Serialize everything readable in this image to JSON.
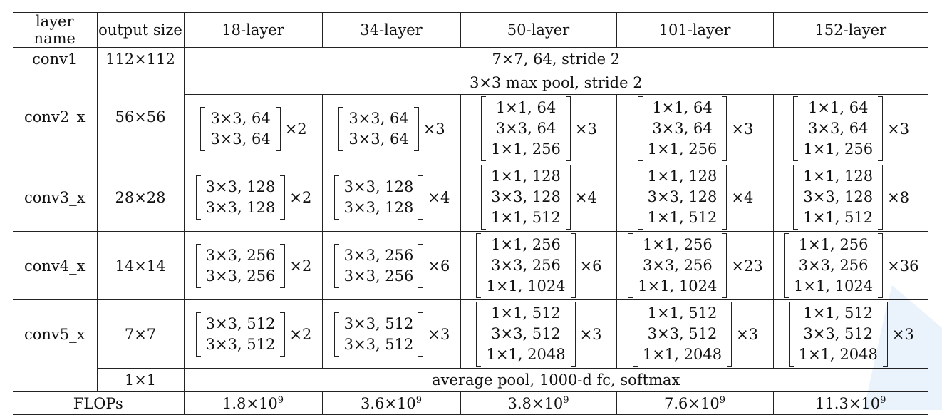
{
  "headers": [
    "layer name",
    "output size",
    "18-layer",
    "34-layer",
    "50-layer",
    "101-layer",
    "152-layer"
  ],
  "conv1": {
    "name": "conv1",
    "output": "112×112",
    "spec": "7×7, 64, stride 2"
  },
  "conv2": {
    "name": "conv2_x",
    "output": "56×56",
    "pool": "3×3 max pool, stride 2",
    "cells": [
      {
        "lines": [
          "3×3, 64",
          "3×3, 64"
        ],
        "rep": "×2"
      },
      {
        "lines": [
          "3×3, 64",
          "3×3, 64"
        ],
        "rep": "×3"
      },
      {
        "lines": [
          "1×1, 64",
          "3×3, 64",
          "1×1, 256"
        ],
        "rep": "×3"
      },
      {
        "lines": [
          "1×1, 64",
          "3×3, 64",
          "1×1, 256"
        ],
        "rep": "×3"
      },
      {
        "lines": [
          "1×1, 64",
          "3×3, 64",
          "1×1, 256"
        ],
        "rep": "×3"
      }
    ]
  },
  "conv3": {
    "name": "conv3_x",
    "output": "28×28",
    "cells": [
      {
        "lines": [
          "3×3, 128",
          "3×3, 128"
        ],
        "rep": "×2"
      },
      {
        "lines": [
          "3×3, 128",
          "3×3, 128"
        ],
        "rep": "×4"
      },
      {
        "lines": [
          "1×1, 128",
          "3×3, 128",
          "1×1, 512"
        ],
        "rep": "×4"
      },
      {
        "lines": [
          "1×1, 128",
          "3×3, 128",
          "1×1, 512"
        ],
        "rep": "×4"
      },
      {
        "lines": [
          "1×1, 128",
          "3×3, 128",
          "1×1, 512"
        ],
        "rep": "×8"
      }
    ]
  },
  "conv4": {
    "name": "conv4_x",
    "output": "14×14",
    "cells": [
      {
        "lines": [
          "3×3, 256",
          "3×3, 256"
        ],
        "rep": "×2"
      },
      {
        "lines": [
          "3×3, 256",
          "3×3, 256"
        ],
        "rep": "×6"
      },
      {
        "lines": [
          "1×1, 256",
          "3×3, 256",
          "1×1, 1024"
        ],
        "rep": "×6"
      },
      {
        "lines": [
          "1×1, 256",
          "3×3, 256",
          "1×1, 1024"
        ],
        "rep": "×23"
      },
      {
        "lines": [
          "1×1, 256",
          "3×3, 256",
          "1×1, 1024"
        ],
        "rep": "×36"
      }
    ]
  },
  "conv5": {
    "name": "conv5_x",
    "output": "7×7",
    "cells": [
      {
        "lines": [
          "3×3, 512",
          "3×3, 512"
        ],
        "rep": "×2"
      },
      {
        "lines": [
          "3×3, 512",
          "3×3, 512"
        ],
        "rep": "×3"
      },
      {
        "lines": [
          "1×1, 512",
          "3×3, 512",
          "1×1, 2048"
        ],
        "rep": "×3"
      },
      {
        "lines": [
          "1×1, 512",
          "3×3, 512",
          "1×1, 2048"
        ],
        "rep": "×3"
      },
      {
        "lines": [
          "1×1, 512",
          "3×3, 512",
          "1×1, 2048"
        ],
        "rep": "×3"
      }
    ]
  },
  "final": {
    "output": "1×1",
    "spec": "average pool, 1000-d fc, softmax"
  },
  "flops": {
    "label": "FLOPs",
    "values": [
      {
        "mant": "1.8×10",
        "exp": "9"
      },
      {
        "mant": "3.6×10",
        "exp": "9"
      },
      {
        "mant": "3.8×10",
        "exp": "9"
      },
      {
        "mant": "7.6×10",
        "exp": "9"
      },
      {
        "mant": "11.3×10",
        "exp": "9"
      }
    ]
  },
  "colors": {
    "rule": "#222222",
    "decor": "#eaf2fb"
  }
}
